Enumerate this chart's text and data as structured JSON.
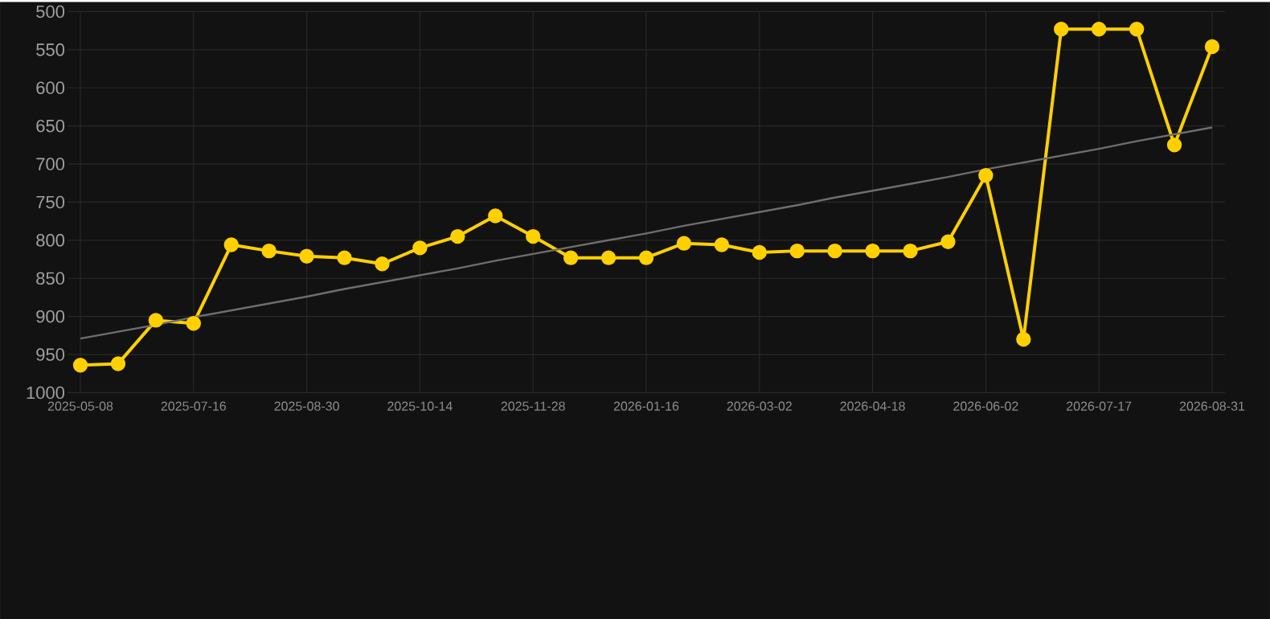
{
  "chart_data": {
    "type": "line",
    "categories": [
      "2025-05-08",
      null,
      null,
      "2025-07-16",
      null,
      null,
      "2025-08-30",
      null,
      null,
      "2025-10-14",
      null,
      null,
      "2025-11-28",
      null,
      null,
      "2026-01-16",
      null,
      null,
      "2026-03-02",
      null,
      null,
      "2026-04-18",
      null,
      null,
      "2026-06-02",
      null,
      null,
      "2026-07-17",
      null,
      null,
      "2026-08-31"
    ],
    "series": [
      {
        "color": "#ffd000",
        "marker": "circle",
        "values": [
          964,
          962,
          905,
          909,
          806,
          814,
          821,
          823,
          831,
          810,
          795,
          768,
          795,
          823,
          823,
          823,
          804,
          806,
          816,
          814,
          814,
          814,
          814,
          802,
          715,
          930,
          523,
          523,
          523,
          675,
          546
        ]
      },
      {
        "type": "line",
        "color": "#6e6e6e",
        "marker": "none",
        "values": [
          929,
          920,
          911,
          901,
          892,
          883,
          874,
          864,
          855,
          846,
          837,
          827,
          818,
          809,
          800,
          791,
          781,
          772,
          763,
          754,
          744,
          735,
          726,
          717,
          707,
          698,
          689,
          680,
          670,
          661,
          652
        ]
      }
    ],
    "ylim": [
      1000,
      500
    ],
    "yticks": [
      500,
      550,
      600,
      650,
      700,
      750,
      800,
      850,
      900,
      950,
      1000
    ],
    "grid": true,
    "line_style": "solid"
  }
}
